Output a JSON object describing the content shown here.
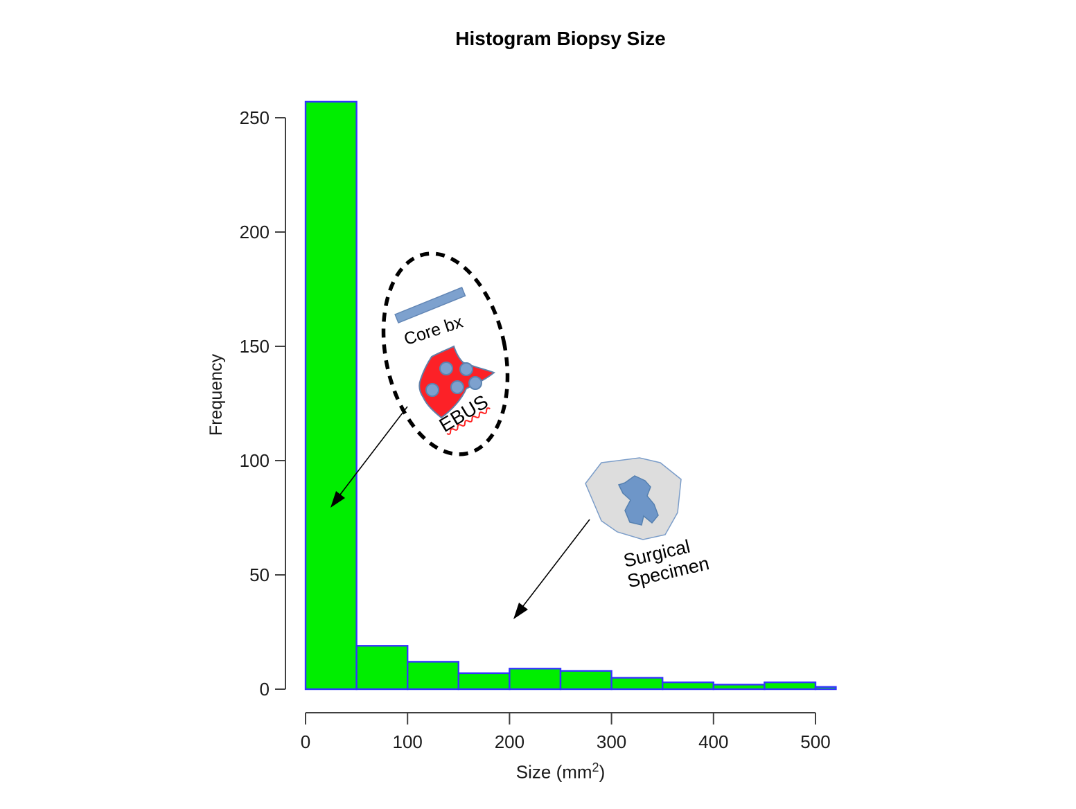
{
  "chart_data": {
    "type": "bar",
    "title": "Histogram Biopsy Size",
    "ylabel": "Frequency",
    "xlabel": "Size (mm²)",
    "xlabel_prefix": "Size (mm",
    "xlabel_sup": "2",
    "xlabel_suffix": ")",
    "bin_width": 50,
    "bin_starts": [
      0,
      50,
      100,
      150,
      200,
      250,
      300,
      350,
      400,
      450,
      500
    ],
    "counts": [
      257,
      19,
      12,
      7,
      9,
      8,
      5,
      3,
      2,
      3,
      1
    ],
    "x_ticks": [
      0,
      100,
      200,
      300,
      400,
      500
    ],
    "y_ticks": [
      0,
      50,
      100,
      150,
      200,
      250
    ],
    "xlim": [
      0,
      520
    ],
    "ylim": [
      0,
      258
    ],
    "grid": false,
    "legend": "none",
    "bar_fill": "#00ee00",
    "bar_stroke": "#3333ff"
  },
  "annotations": {
    "biopsy_ellipse": {
      "core_label": "Core bx",
      "ebus_label": "EBUS",
      "ellipse_color": "#000000",
      "rod_fill": "#7da1ce",
      "rod_stroke": "#6286b5",
      "blob_fill": "#fc2127",
      "blob_stroke": "#6080a8",
      "cell_fill": "#7da1ce",
      "cell_stroke": "#5b84b1",
      "squiggle_color": "#ff2222"
    },
    "surgical": {
      "label_line1": "Surgical",
      "label_line2": "Specimen",
      "blob_fill": "#dddddd",
      "blob_stroke": "#7b9dc9",
      "inner_fill": "#6e96c8",
      "inner_stroke": "#5580b0"
    },
    "arrow_color": "#000000"
  }
}
